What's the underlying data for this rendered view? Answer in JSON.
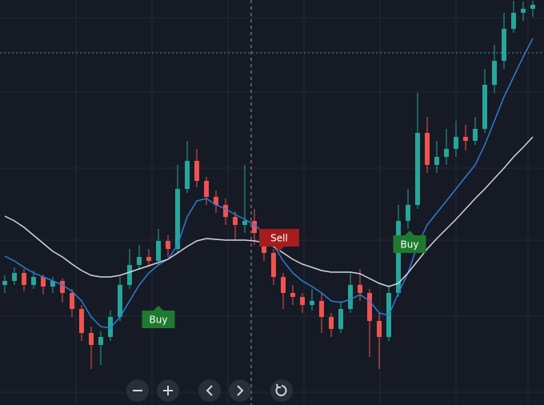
{
  "chart_data": {
    "type": "candlestick",
    "ylim": [
      0,
      506
    ],
    "up_color": "#26a69a",
    "down_color": "#ef5350",
    "open": [
      150,
      155,
      165,
      150,
      160,
      148,
      155,
      140,
      120,
      90,
      75,
      85,
      110,
      150,
      175,
      185,
      180,
      205,
      195,
      270,
      305,
      280,
      260,
      250,
      235,
      225,
      230,
      215,
      190,
      160,
      140,
      135,
      125,
      130,
      110,
      95,
      120,
      150,
      140,
      105,
      85,
      140,
      230,
      250,
      340,
      300,
      310,
      320,
      335,
      330,
      345,
      400,
      430,
      470,
      490,
      495
    ],
    "high": [
      162,
      172,
      170,
      168,
      163,
      160,
      158,
      145,
      125,
      98,
      92,
      118,
      160,
      195,
      200,
      195,
      220,
      212,
      300,
      330,
      320,
      285,
      268,
      258,
      242,
      300,
      245,
      220,
      195,
      165,
      150,
      140,
      145,
      140,
      115,
      130,
      165,
      170,
      145,
      115,
      150,
      250,
      270,
      390,
      360,
      330,
      345,
      355,
      350,
      360,
      420,
      450,
      490,
      505,
      504,
      505
    ],
    "low": [
      140,
      150,
      142,
      145,
      138,
      140,
      128,
      110,
      80,
      45,
      50,
      80,
      105,
      145,
      170,
      172,
      175,
      185,
      190,
      265,
      272,
      250,
      240,
      225,
      205,
      215,
      200,
      180,
      150,
      120,
      125,
      115,
      118,
      90,
      85,
      90,
      115,
      130,
      60,
      45,
      80,
      135,
      220,
      245,
      290,
      290,
      300,
      310,
      318,
      325,
      340,
      390,
      420,
      465,
      480,
      485
    ],
    "close": [
      155,
      165,
      150,
      160,
      148,
      155,
      140,
      120,
      90,
      75,
      85,
      110,
      150,
      175,
      185,
      180,
      205,
      195,
      270,
      305,
      280,
      260,
      250,
      235,
      225,
      230,
      215,
      190,
      160,
      140,
      135,
      125,
      130,
      110,
      95,
      120,
      150,
      140,
      105,
      85,
      140,
      230,
      250,
      340,
      300,
      310,
      320,
      335,
      330,
      345,
      400,
      430,
      470,
      490,
      495,
      500
    ],
    "series": [
      {
        "color": "#2f7bd6",
        "values": [
          186,
          180,
          172,
          165,
          160,
          155,
          150,
          142,
          130,
          110,
          98,
          96,
          110,
          130,
          150,
          165,
          175,
          182,
          200,
          235,
          255,
          258,
          250,
          245,
          238,
          232,
          225,
          215,
          200,
          180,
          165,
          155,
          148,
          140,
          130,
          128,
          132,
          138,
          130,
          115,
          112,
          140,
          165,
          200,
          225,
          240,
          255,
          270,
          285,
          300,
          325,
          355,
          385,
          410,
          435,
          458
        ]
      },
      {
        "color": "#d1d4dc",
        "values": [
          236,
          230,
          222,
          212,
          202,
          192,
          185,
          176,
          168,
          162,
          160,
          160,
          162,
          166,
          170,
          174,
          178,
          182,
          190,
          198,
          205,
          208,
          207,
          206,
          206,
          206,
          205,
          203,
          198,
          190,
          182,
          176,
          172,
          168,
          166,
          166,
          166,
          164,
          158,
          152,
          148,
          152,
          165,
          180,
          195,
          208,
          220,
          232,
          245,
          258,
          270,
          283,
          296,
          310,
          322,
          335
        ]
      }
    ],
    "price_line": 440,
    "annotations": [
      {
        "text": "Buy",
        "color": "#1e7a2e"
      },
      {
        "text": "Sell",
        "color": "#a51d1d"
      },
      {
        "text": "Buy",
        "color": "#1e7a2e"
      }
    ]
  }
}
